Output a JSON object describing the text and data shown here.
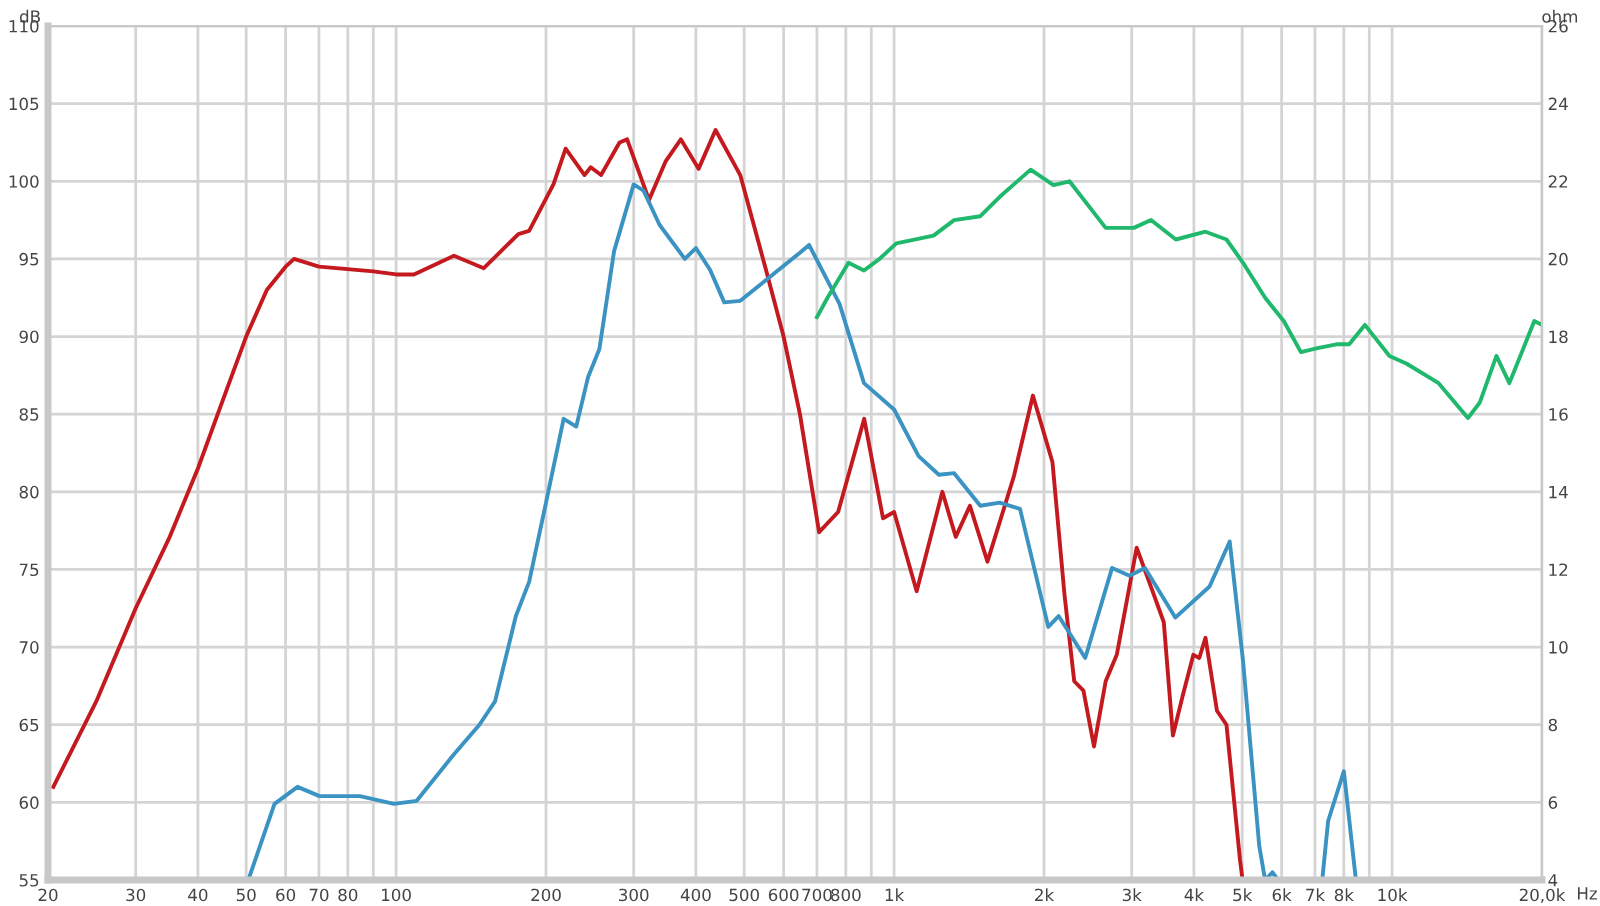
{
  "chart_data": {
    "type": "line",
    "xlabel": "Hz",
    "ylabel": "dB",
    "y2label": "ohm",
    "log": "x",
    "grid": true,
    "xlim": [
      20,
      20000
    ],
    "ylim": [
      55,
      110
    ],
    "y2lim": [
      4,
      26
    ],
    "xticks": [
      20,
      30,
      40,
      50,
      60,
      70,
      80,
      {
        "value": 90,
        "label": null
      },
      100,
      200,
      300,
      400,
      500,
      600,
      700,
      800,
      {
        "value": 900,
        "label": null
      },
      {
        "value": 1000,
        "label": "1k"
      },
      {
        "value": 2000,
        "label": "2k"
      },
      {
        "value": 3000,
        "label": "3k"
      },
      {
        "value": 4000,
        "label": "4k"
      },
      {
        "value": 5000,
        "label": "5k"
      },
      {
        "value": 6000,
        "label": "6k"
      },
      {
        "value": 7000,
        "label": "7k"
      },
      {
        "value": 8000,
        "label": "8k"
      },
      {
        "value": 9000,
        "label": null
      },
      {
        "value": 10000,
        "label": "10k"
      },
      {
        "value": 20000,
        "label": "20,0k"
      }
    ],
    "yticks": [
      55,
      60,
      65,
      70,
      75,
      80,
      85,
      90,
      95,
      100,
      105,
      110
    ],
    "y2ticks": [
      4,
      6,
      8,
      10,
      12,
      14,
      16,
      18,
      20,
      22,
      24,
      26
    ],
    "series": [
      {
        "color": "#c41a1f",
        "x": [
          20.5,
          25,
          30,
          35,
          40,
          45,
          50,
          55,
          60,
          62.4,
          70,
          90,
          100,
          108.6,
          130.7,
          150,
          176,
          185,
          207,
          219,
          239,
          246,
          258,
          281,
          291,
          322,
          348,
          373,
          405,
          438,
          491,
          553,
          600,
          647,
          707,
          772,
          871,
          950,
          1000,
          1110,
          1250,
          1330,
          1420,
          1540,
          1740,
          1900,
          2080,
          2200,
          2300,
          2400,
          2520,
          2660,
          2800,
          3070,
          3330,
          3480,
          3630,
          3800,
          3990,
          4100,
          4220,
          4450,
          4650,
          4950,
          5000
        ],
        "values": [
          61,
          66.5,
          72.5,
          77,
          81.5,
          86,
          90,
          93,
          94.5,
          95,
          94.5,
          94.2,
          94,
          94,
          95.2,
          94.4,
          96.6,
          96.8,
          99.8,
          102.1,
          100.4,
          100.9,
          100.4,
          102.5,
          102.7,
          98.8,
          101.3,
          102.7,
          100.8,
          103.3,
          100.4,
          94.3,
          90,
          85,
          77.4,
          78.7,
          84.7,
          78.3,
          78.7,
          73.6,
          80,
          77.1,
          79.1,
          75.5,
          81,
          86.2,
          81.9,
          73.3,
          67.8,
          67.2,
          63.6,
          67.8,
          69.5,
          76.4,
          73.3,
          71.6,
          64.3,
          66.9,
          69.5,
          69.3,
          70.6,
          65.9,
          65,
          56.3,
          55.2
        ]
      },
      {
        "color": "#3a93c2",
        "x": [
          50.5,
          57,
          63.4,
          70.2,
          84.6,
          99,
          110,
          130.7,
          147,
          158,
          174,
          185,
          200,
          217,
          230,
          243,
          256,
          274,
          300,
          314,
          338,
          380,
          400,
          427,
          456,
          491,
          647,
          675,
          777,
          870,
          1000,
          1120,
          1230,
          1320,
          1490,
          1630,
          1790,
          2040,
          2140,
          2420,
          2740,
          2970,
          3190,
          3670,
          4300,
          4720,
          5020,
          5410,
          5560,
          5750,
          5900,
          6500,
          7240,
          7440,
          8000,
          8460
        ],
        "values": [
          55,
          59.9,
          61,
          60.4,
          60.4,
          59.9,
          60.1,
          63.1,
          65,
          66.5,
          72,
          74.2,
          79.3,
          84.7,
          84.2,
          87.4,
          89.2,
          95.5,
          99.8,
          99.4,
          97.2,
          95,
          95.7,
          94.3,
          92.2,
          92.3,
          95.4,
          95.9,
          92.1,
          87,
          85.3,
          82.3,
          81.1,
          81.2,
          79.1,
          79.3,
          78.9,
          71.3,
          72,
          69.3,
          75.1,
          74.6,
          75.1,
          71.9,
          73.9,
          76.8,
          69.1,
          57.2,
          55,
          55.5,
          55,
          null,
          55,
          58.8,
          62,
          55
        ]
      },
      {
        "color": "#1fb86c",
        "axis": "y2",
        "x": [
          700,
          735,
          810,
          870,
          935,
          1010,
          1200,
          1320,
          1490,
          1630,
          1880,
          2090,
          2250,
          2660,
          3030,
          3280,
          3680,
          4220,
          4650,
          5020,
          5560,
          6060,
          6560,
          7080,
          7730,
          8200,
          8820,
          9880,
          10700,
          12400,
          14200,
          15000,
          16200,
          17200,
          19300,
          20000
        ],
        "values": [
          18.5,
          19,
          19.9,
          19.7,
          20,
          20.4,
          20.6,
          21,
          21.1,
          21.6,
          22.3,
          21.9,
          22,
          20.8,
          20.8,
          21,
          20.5,
          20.7,
          20.5,
          19.9,
          19,
          18.4,
          17.6,
          17.7,
          17.8,
          17.8,
          18.3,
          17.5,
          17.3,
          16.8,
          15.9,
          16.3,
          17.5,
          16.8,
          18.4,
          18.3
        ]
      }
    ]
  }
}
